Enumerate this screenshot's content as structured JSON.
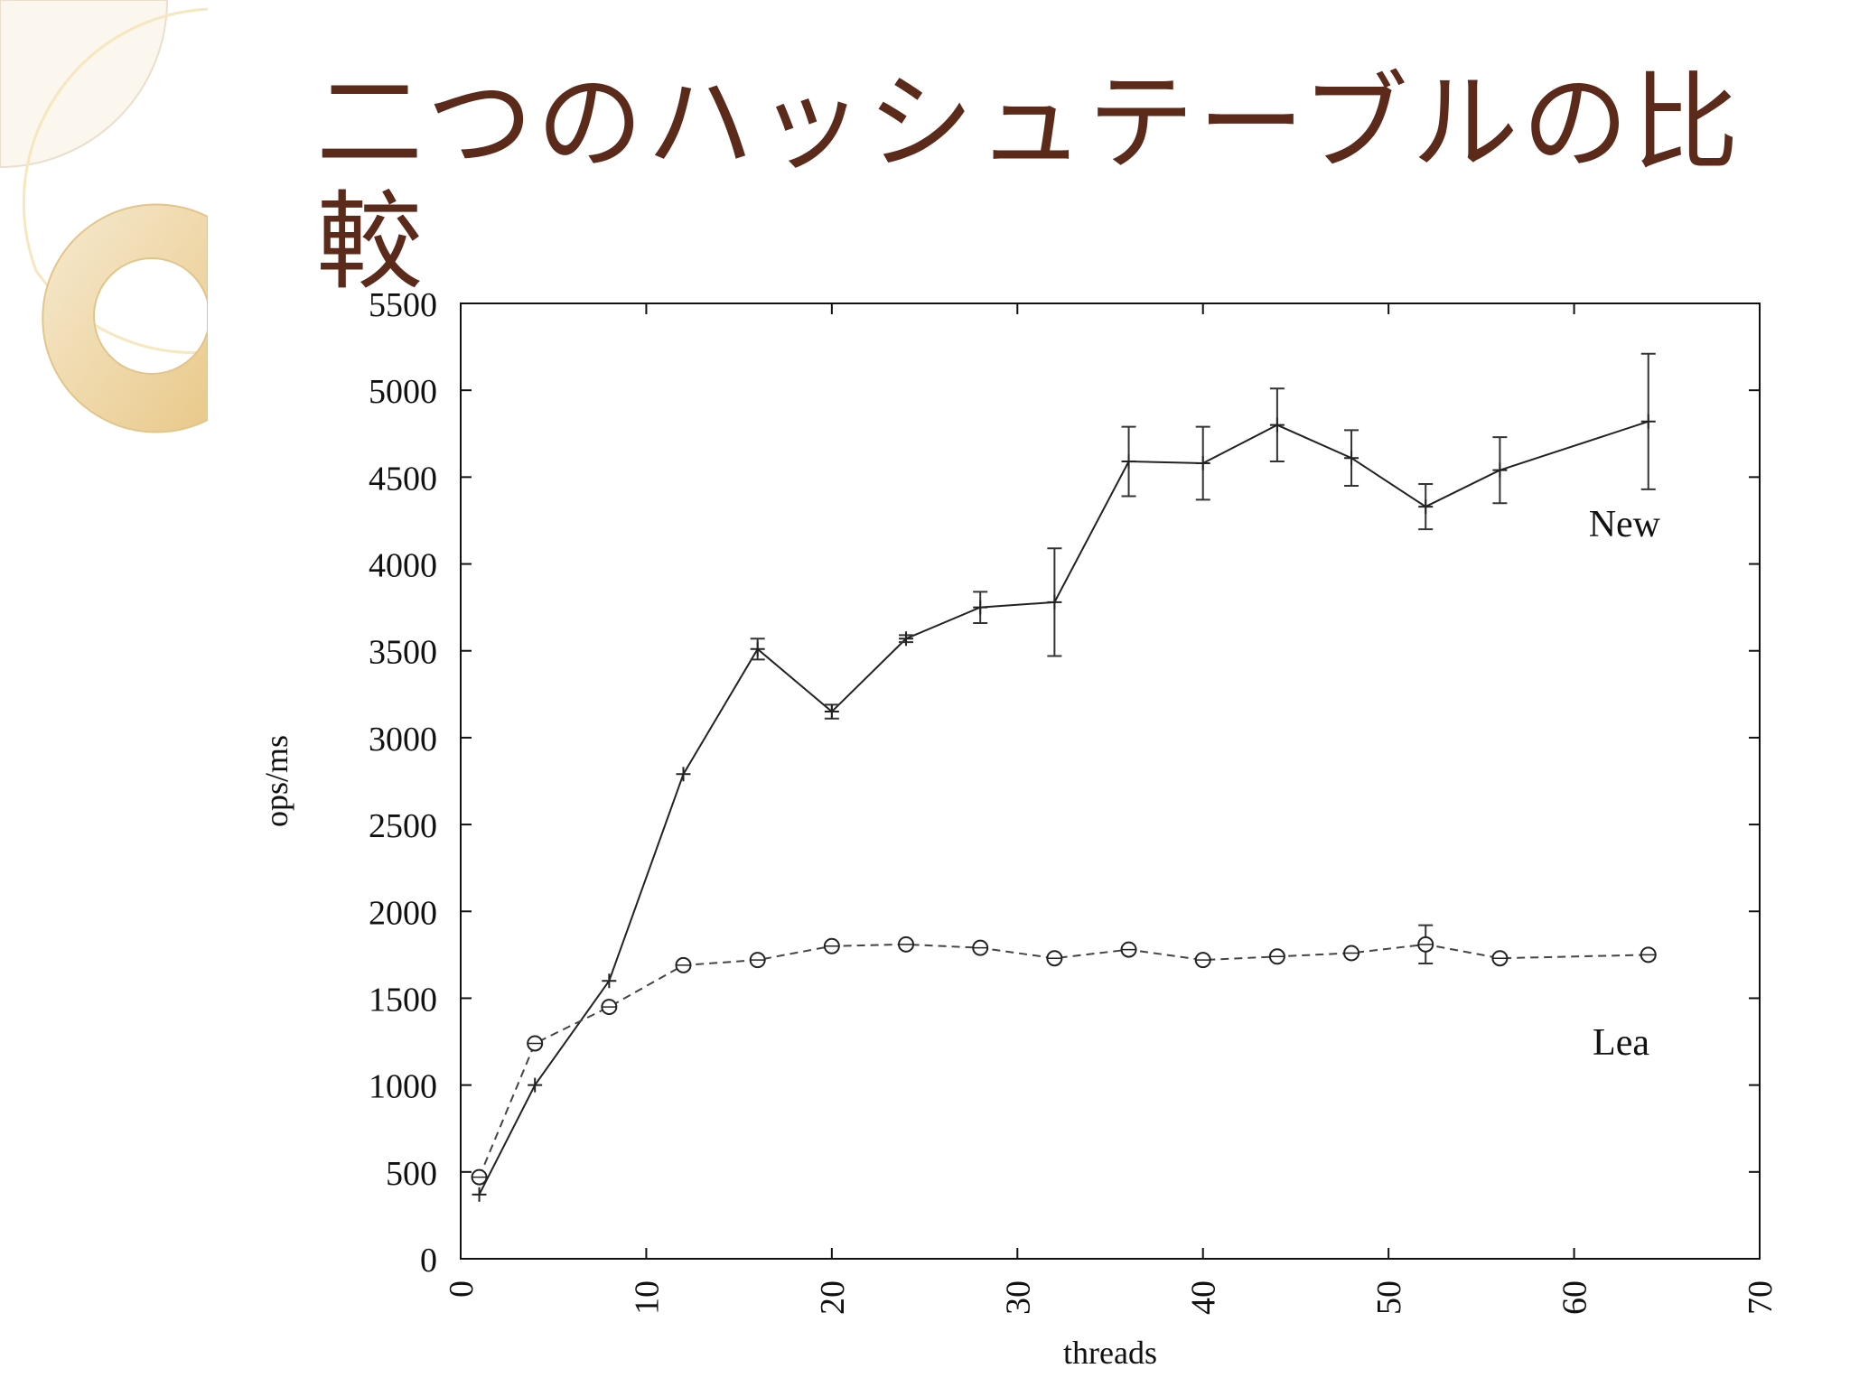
{
  "slide": {
    "title": "二つのハッシュテーブルの比較"
  },
  "chart_data": {
    "type": "line",
    "title": "",
    "xlabel": "threads",
    "ylabel": "ops/ms",
    "xlim": [
      0,
      70
    ],
    "ylim": [
      0,
      5500
    ],
    "xticks": [
      0,
      10,
      20,
      30,
      40,
      50,
      60,
      70
    ],
    "yticks": [
      0,
      500,
      1000,
      1500,
      2000,
      2500,
      3000,
      3500,
      4000,
      4500,
      5000,
      5500
    ],
    "grid": false,
    "series": [
      {
        "name": "New",
        "style": "solid",
        "marker": "plus",
        "x": [
          1,
          4,
          8,
          12,
          16,
          20,
          24,
          28,
          32,
          36,
          40,
          44,
          48,
          52,
          56,
          64
        ],
        "y": [
          370,
          1000,
          1600,
          2790,
          3510,
          3150,
          3570,
          3750,
          3780,
          4590,
          4580,
          4800,
          4610,
          4330,
          4540,
          4820
        ],
        "err": [
          0,
          0,
          0,
          0,
          60,
          40,
          20,
          90,
          310,
          200,
          210,
          210,
          160,
          130,
          190,
          390
        ]
      },
      {
        "name": "Lea",
        "style": "dashed",
        "marker": "circle",
        "x": [
          1,
          4,
          8,
          12,
          16,
          20,
          24,
          28,
          32,
          36,
          40,
          44,
          48,
          52,
          56,
          64
        ],
        "y": [
          470,
          1240,
          1450,
          1690,
          1720,
          1800,
          1810,
          1790,
          1730,
          1780,
          1720,
          1740,
          1760,
          1810,
          1730,
          1750
        ],
        "err": [
          0,
          0,
          0,
          0,
          0,
          0,
          0,
          0,
          0,
          0,
          0,
          0,
          0,
          110,
          0,
          0
        ]
      }
    ]
  }
}
